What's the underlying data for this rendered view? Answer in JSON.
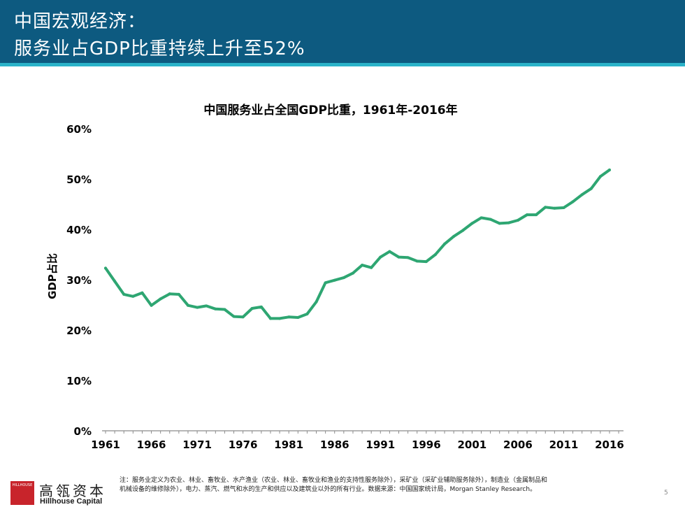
{
  "slide": {
    "title_line1": "中国宏观经济：",
    "title_line2": "服务业占GDP比重持续上升至52%",
    "page_number": "5",
    "colors": {
      "header": "#0d5a80",
      "accent": "#2bb3c9",
      "line": "#2ea672"
    }
  },
  "logo": {
    "box_text": "HILLHOUSE",
    "name_cn": "高瓴资本",
    "name_en": "Hillhouse Capital"
  },
  "note": {
    "text": "注：服务业定义为农业、林业、畜牧业、水产渔业（农业、林业、畜牧业和渔业的支持性服务除外），采矿业（采矿业辅助服务除外），制造业（金属制品和机械设备的维修除外），电力、蒸汽、燃气和水的生产和供应以及建筑业以外的所有行业。数据来源：中国国家统计局，Morgan Stanley Research。"
  },
  "chart_data": {
    "type": "line",
    "title": "中国服务业占全国GDP比重，1961年-2016年",
    "xlabel": "",
    "ylabel": "GDP占比",
    "ylim": [
      0,
      60
    ],
    "xlim": [
      1961,
      2016
    ],
    "yticks": [
      "0%",
      "10%",
      "20%",
      "30%",
      "40%",
      "50%",
      "60%"
    ],
    "xticks": [
      "1961",
      "1966",
      "1971",
      "1976",
      "1981",
      "1986",
      "1991",
      "1996",
      "2001",
      "2006",
      "2011",
      "2016"
    ],
    "series": [
      {
        "name": "服务业占GDP比重",
        "x": [
          1961,
          1962,
          1963,
          1964,
          1965,
          1966,
          1967,
          1968,
          1969,
          1970,
          1971,
          1972,
          1973,
          1974,
          1975,
          1976,
          1977,
          1978,
          1979,
          1980,
          1981,
          1982,
          1983,
          1984,
          1985,
          1986,
          1987,
          1988,
          1989,
          1990,
          1991,
          1992,
          1993,
          1994,
          1995,
          1996,
          1997,
          1998,
          1999,
          2000,
          2001,
          2002,
          2003,
          2004,
          2005,
          2006,
          2007,
          2008,
          2009,
          2010,
          2011,
          2012,
          2013,
          2014,
          2015,
          2016
        ],
        "values": [
          32.3,
          29.7,
          27.1,
          26.7,
          27.4,
          24.9,
          26.2,
          27.2,
          27.1,
          24.9,
          24.5,
          24.8,
          24.2,
          24.1,
          22.7,
          22.6,
          24.3,
          24.6,
          22.3,
          22.3,
          22.6,
          22.5,
          23.2,
          25.6,
          29.4,
          29.9,
          30.4,
          31.3,
          32.9,
          32.4,
          34.5,
          35.6,
          34.5,
          34.4,
          33.7,
          33.6,
          35.0,
          37.1,
          38.6,
          39.8,
          41.2,
          42.3,
          42.0,
          41.2,
          41.3,
          41.8,
          42.9,
          42.9,
          44.4,
          44.2,
          44.3,
          45.5,
          46.9,
          48.1,
          50.5,
          51.8
        ]
      }
    ]
  }
}
